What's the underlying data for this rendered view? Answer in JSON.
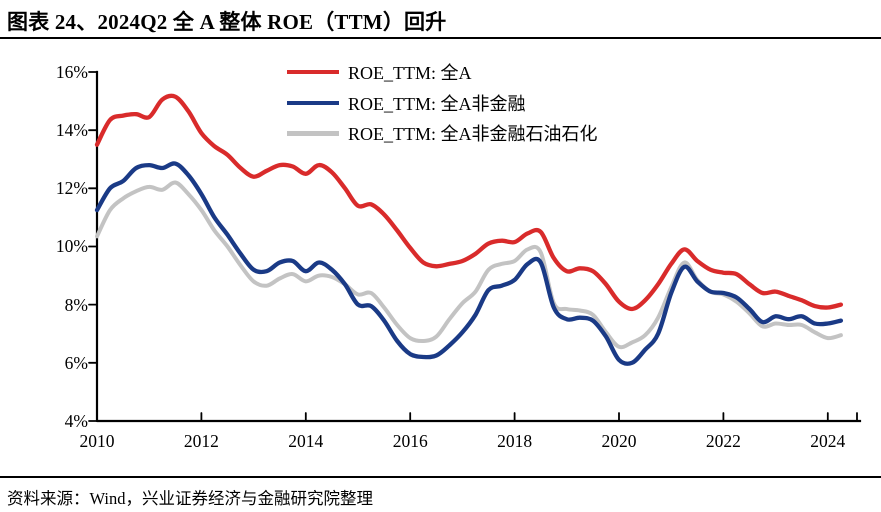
{
  "header": {
    "title": "图表 24、2024Q2 全 A 整体 ROE（TTM）回升"
  },
  "footer": {
    "source": "资料来源：Wind，兴业证券经济与金融研究院整理"
  },
  "colors": {
    "red": "#d92b2b",
    "navy": "#1a3a86",
    "gray": "#c3c3c3",
    "axis": "#000000"
  },
  "legend": {
    "items": [
      {
        "label": "ROE_TTM: 全A",
        "color": "#d92b2b"
      },
      {
        "label": "ROE_TTM: 全A非金融",
        "color": "#1a3a86"
      },
      {
        "label": "ROE_TTM: 全A非金融石油石化",
        "color": "#c3c3c3"
      }
    ]
  },
  "y_axis": {
    "ticks": [
      {
        "value": 16,
        "label": "16%"
      },
      {
        "value": 14,
        "label": "14%"
      },
      {
        "value": 12,
        "label": "12%"
      },
      {
        "value": 10,
        "label": "10%"
      },
      {
        "value": 8,
        "label": "8%"
      },
      {
        "value": 6,
        "label": "6%"
      },
      {
        "value": 4,
        "label": "4%"
      }
    ]
  },
  "x_axis": {
    "ticks": [
      {
        "value": 2010,
        "label": "2010"
      },
      {
        "value": 2012,
        "label": "2012"
      },
      {
        "value": 2014,
        "label": "2014"
      },
      {
        "value": 2016,
        "label": "2016"
      },
      {
        "value": 2018,
        "label": "2018"
      },
      {
        "value": 2020,
        "label": "2020"
      },
      {
        "value": 2022,
        "label": "2022"
      },
      {
        "value": 2024,
        "label": "2024"
      }
    ]
  },
  "chart_data": {
    "type": "line",
    "title": "2024Q2 全 A 整体 ROE（TTM）回升",
    "xlabel": "",
    "ylabel": "",
    "ylim": [
      4,
      16
    ],
    "xlim": [
      2010,
      2024.6
    ],
    "grid": false,
    "legend_position": "top-center",
    "x": [
      2010,
      2010.25,
      2010.5,
      2010.75,
      2011,
      2011.25,
      2011.5,
      2011.75,
      2012,
      2012.25,
      2012.5,
      2012.75,
      2013,
      2013.25,
      2013.5,
      2013.75,
      2014,
      2014.25,
      2014.5,
      2014.75,
      2015,
      2015.25,
      2015.5,
      2015.75,
      2016,
      2016.25,
      2016.5,
      2016.75,
      2017,
      2017.25,
      2017.5,
      2017.75,
      2018,
      2018.25,
      2018.5,
      2018.75,
      2019,
      2019.25,
      2019.5,
      2019.75,
      2020,
      2020.25,
      2020.5,
      2020.75,
      2021,
      2021.25,
      2021.5,
      2021.75,
      2022,
      2022.25,
      2022.5,
      2022.75,
      2023,
      2023.25,
      2023.5,
      2023.75,
      2024,
      2024.25
    ],
    "series": [
      {
        "name": "ROE_TTM: 全A",
        "key": "all-a",
        "color": "#d92b2b",
        "stroke_width": 4.3,
        "values": [
          13.5,
          14.35,
          14.5,
          14.55,
          14.45,
          15.05,
          15.15,
          14.65,
          13.9,
          13.45,
          13.15,
          12.7,
          12.4,
          12.6,
          12.8,
          12.75,
          12.5,
          12.8,
          12.55,
          12.0,
          11.4,
          11.45,
          11.1,
          10.55,
          9.95,
          9.45,
          9.32,
          9.4,
          9.5,
          9.75,
          10.1,
          10.2,
          10.15,
          10.45,
          10.5,
          9.6,
          9.15,
          9.25,
          9.15,
          8.7,
          8.1,
          7.85,
          8.15,
          8.7,
          9.4,
          9.9,
          9.5,
          9.2,
          9.1,
          9.05,
          8.7,
          8.4,
          8.45,
          8.3,
          8.15,
          7.95,
          7.9,
          8.0
        ]
      },
      {
        "name": "ROE_TTM: 全A非金融",
        "key": "all-a-ex-financials",
        "color": "#1a3a86",
        "stroke_width": 4.3,
        "values": [
          11.25,
          12.0,
          12.25,
          12.7,
          12.8,
          12.7,
          12.85,
          12.45,
          11.8,
          11.0,
          10.4,
          9.75,
          9.2,
          9.15,
          9.45,
          9.5,
          9.15,
          9.45,
          9.2,
          8.7,
          8.0,
          7.95,
          7.45,
          6.75,
          6.3,
          6.2,
          6.25,
          6.6,
          7.05,
          7.65,
          8.5,
          8.65,
          8.85,
          9.4,
          9.45,
          7.9,
          7.5,
          7.55,
          7.45,
          6.9,
          6.1,
          6.0,
          6.45,
          7.0,
          8.4,
          9.3,
          8.8,
          8.45,
          8.4,
          8.25,
          7.85,
          7.4,
          7.6,
          7.5,
          7.6,
          7.35,
          7.35,
          7.45
        ]
      },
      {
        "name": "ROE_TTM: 全A非金融石油石化",
        "key": "all-a-ex-financials-petrochem",
        "color": "#c3c3c3",
        "stroke_width": 4.0,
        "values": [
          10.35,
          11.25,
          11.65,
          11.9,
          12.05,
          11.95,
          12.2,
          11.8,
          11.25,
          10.55,
          10.0,
          9.35,
          8.8,
          8.65,
          8.9,
          9.05,
          8.8,
          9.0,
          8.95,
          8.7,
          8.35,
          8.4,
          7.9,
          7.3,
          6.85,
          6.75,
          6.9,
          7.5,
          8.05,
          8.45,
          9.2,
          9.4,
          9.5,
          9.9,
          9.8,
          8.05,
          7.85,
          7.8,
          7.65,
          7.05,
          6.55,
          6.7,
          6.95,
          7.55,
          8.6,
          9.45,
          8.85,
          8.45,
          8.35,
          8.1,
          7.7,
          7.25,
          7.35,
          7.3,
          7.3,
          7.05,
          6.85,
          6.95
        ]
      }
    ]
  }
}
